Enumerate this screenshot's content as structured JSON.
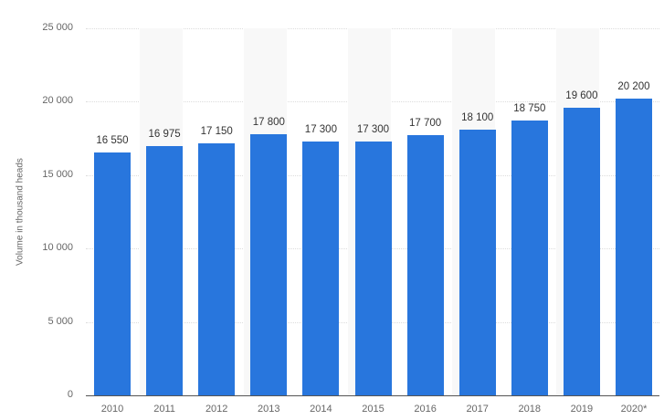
{
  "chart_data": {
    "type": "bar",
    "title": "",
    "xlabel": "",
    "ylabel": "Volume in thousand heads",
    "ylim": [
      0,
      25000
    ],
    "yticks": [
      0,
      5000,
      10000,
      15000,
      20000,
      25000
    ],
    "ytick_labels": [
      "0",
      "5 000",
      "10 000",
      "15 000",
      "20 000",
      "25 000"
    ],
    "categories": [
      "2010",
      "2011",
      "2012",
      "2013",
      "2014",
      "2015",
      "2016",
      "2017",
      "2018",
      "2019",
      "2020*"
    ],
    "values": [
      16550,
      16975,
      17150,
      17800,
      17300,
      17300,
      17700,
      18100,
      18750,
      19600,
      20200
    ],
    "value_labels": [
      "16 550",
      "16 975",
      "17 150",
      "17 800",
      "17 300",
      "17 300",
      "17 700",
      "18 100",
      "18 750",
      "19 600",
      "20 200"
    ],
    "grid": true,
    "legend": null,
    "bar_color": "#2876dd",
    "alternating_band_color": "#f8f8f8"
  }
}
